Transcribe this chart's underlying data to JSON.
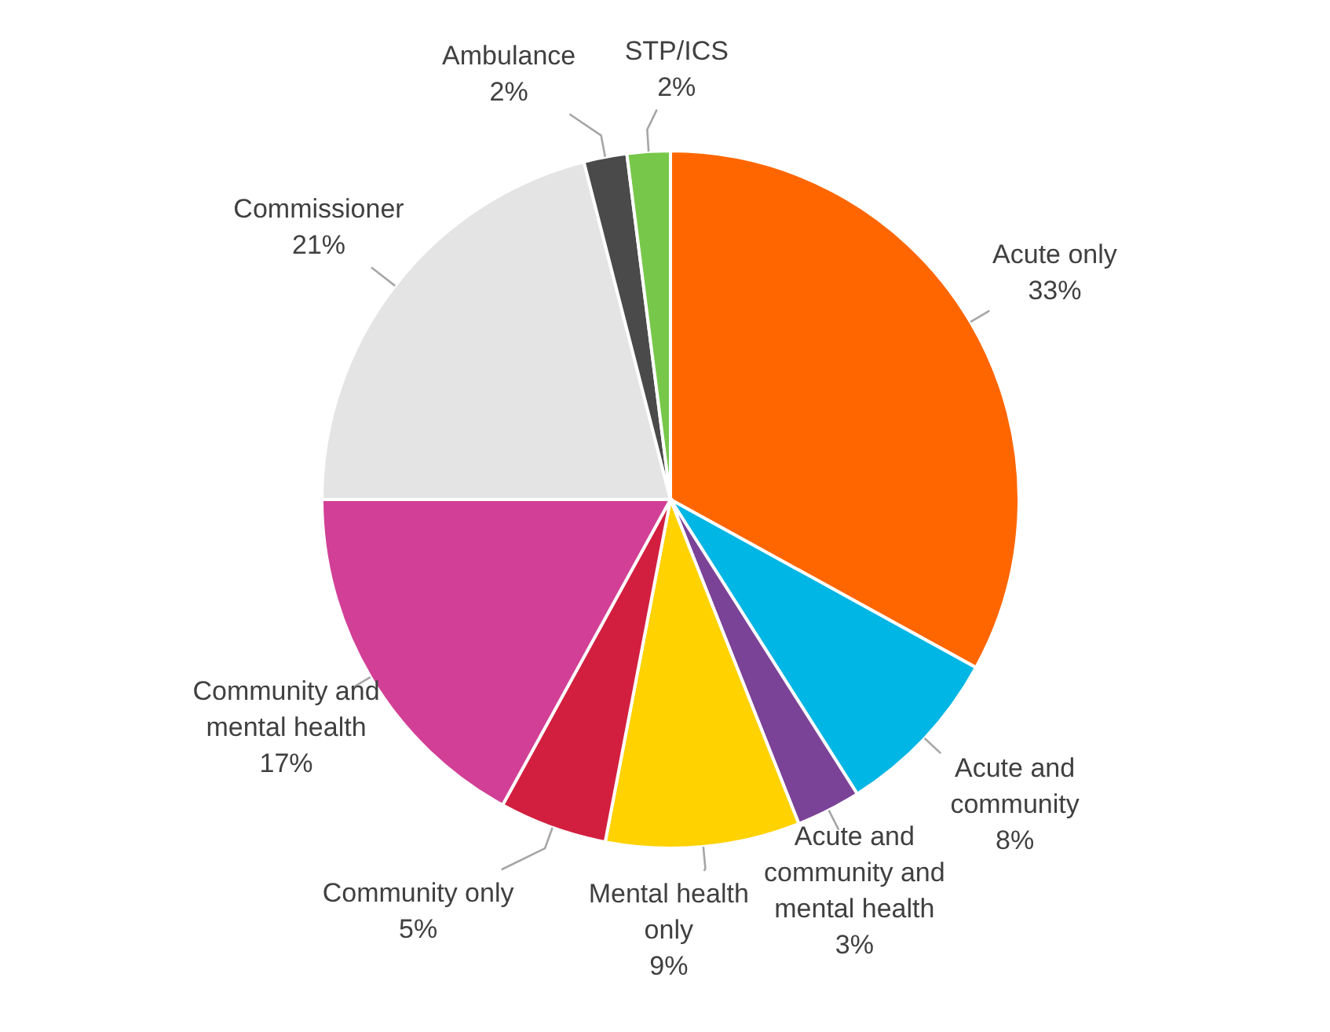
{
  "chart_data": {
    "type": "pie",
    "categories": [
      "Acute only",
      "Acute and community",
      "Acute and community and mental health",
      "Mental health only",
      "Community only",
      "Community and mental health",
      "Commissioner",
      "Ambulance",
      "STP/ICS"
    ],
    "values": [
      33,
      8,
      3,
      9,
      5,
      17,
      21,
      2,
      2
    ],
    "colors": [
      "#ff6600",
      "#00b6e4",
      "#7b4397",
      "#ffd200",
      "#d31f3f",
      "#d23f96",
      "#e4e4e4",
      "#4a4a4a",
      "#77c84a"
    ],
    "value_labels": [
      "33%",
      "8%",
      "3%",
      "9%",
      "5%",
      "17%",
      "21%",
      "2%",
      "2%"
    ]
  }
}
